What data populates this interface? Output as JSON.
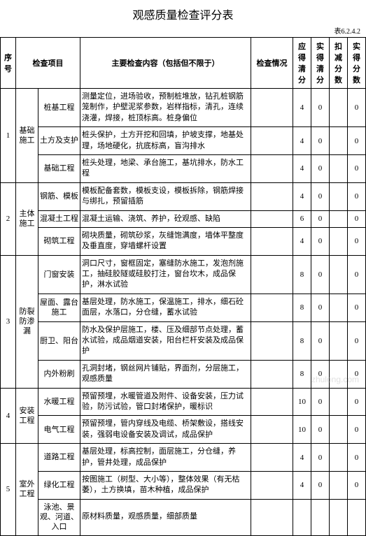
{
  "title": "观感质量检查评分表",
  "table_code": "表6.2.4.2",
  "headers": {
    "seq": "序号",
    "project": "检查项目",
    "content": "主要检查内容（包括但不限于）",
    "status": "检查情况",
    "should_score": "应得清分",
    "actual_score": "实得清分",
    "deduct": "扣减分数",
    "final": "实得分数"
  },
  "watermark": "zhulong.com",
  "groups": [
    {
      "seq": "1",
      "project": "基础施工",
      "rows": [
        {
          "item": "桩基工程",
          "content": "测量定位，进场验收，预制桩堆放，钻孔桩钢筋笼制作，护壁泥浆参数，岩样指标，清孔，连续浇灌，焊接，桩顶标高。桩身偏位",
          "a": "4",
          "b": "0",
          "c": "",
          "d": "0"
        },
        {
          "item": "土方及支护",
          "content": "桩头保护，土方开挖和回填，护坡支撑，地基处理，场地硬化，抗底标高，盲沟排水",
          "a": "4",
          "b": "0",
          "c": "",
          "d": "0"
        },
        {
          "item": "基础工程",
          "content": "桩头处理，地梁、承台施工，基坑排水，防水工程",
          "a": "4",
          "b": "0",
          "c": "",
          "d": "0"
        }
      ]
    },
    {
      "seq": "2",
      "project": "主体施工",
      "rows": [
        {
          "item": "钢筋、模板",
          "content": "模板配备套数，模板支设，模板拆除，钢筋焊接与绑扎，预留插筋",
          "a": "4",
          "b": "0",
          "c": "",
          "d": "0"
        },
        {
          "item": "混凝土工程",
          "content": "混凝土运输、浇筑、养护，砼观感、缺陷",
          "a": "6",
          "b": "0",
          "c": "",
          "d": "0"
        },
        {
          "item": "砌筑工程",
          "content": "砌块质量，砌筑砂浆，灰缝饱满度，墙体平整度及垂直度，穿墙螺杆设置",
          "a": "4",
          "b": "0",
          "c": "",
          "d": "0"
        }
      ]
    },
    {
      "seq": "3",
      "project": "防裂防渗漏",
      "rows": [
        {
          "item": "门窗安装",
          "content": "洞口尺寸，窗框固定，塞缝防水施工，发泡剂施工，抽硅胶隧或硅胶打注，窗台坎木，成品保护，淋水试验",
          "a": "8",
          "b": "0",
          "c": "",
          "d": "0"
        },
        {
          "item": "屋面、露台施工",
          "content": "基层处理，防水施工，保温施工，排水，细石砼面层，水落口，分仓缝，蓄水试验",
          "a": "8",
          "b": "0",
          "c": "",
          "d": "0"
        },
        {
          "item": "厨卫、阳台",
          "content": "防水及保护层施工，楼、压及细部节点处理，蓄水试验，成品烟道安装，阳台栏杆安装及成品保护",
          "a": "8",
          "b": "0",
          "c": "",
          "d": "0"
        },
        {
          "item": "内外粉刷",
          "content": "孔洞封堵，钢丝网片铺贴，界面剂，分层施工，观感质量",
          "a": "8",
          "b": "0",
          "c": "",
          "d": "0"
        }
      ]
    },
    {
      "seq": "4",
      "project": "安装工程",
      "rows": [
        {
          "item": "水暖工程",
          "content": "预留预埋，水暖管道及附件、设备安装，压力试验，防污试验，管口封堵保护，暖标识",
          "a": "10",
          "b": "0",
          "c": "",
          "d": "0"
        },
        {
          "item": "电气工程",
          "content": "预留预埋，管内穿线及电缆、桥架敷设，搭线安装，强弱电设备安装及调试，成品保护",
          "a": "10",
          "b": "0",
          "c": "",
          "d": "0"
        }
      ]
    },
    {
      "seq": "5",
      "project": "室外工程",
      "rows": [
        {
          "item": "道路工程",
          "content": "基层处理，标高控制，面层施工，分仓缝，养护，管井处理，成品保护",
          "a": "4",
          "b": "0",
          "c": "",
          "d": "0"
        },
        {
          "item": "绿化工程",
          "content": "按图施工（树型、大小等），整体效果（有无枯萎），土方换填，苗木种植，成品保护",
          "a": "4",
          "b": "0",
          "c": "",
          "d": "0"
        },
        {
          "item": "泳池、景观、河道、入口",
          "content": "原材料质量，观感质量，细部质量",
          "a": "",
          "b": "",
          "c": "",
          "d": ""
        }
      ]
    }
  ]
}
